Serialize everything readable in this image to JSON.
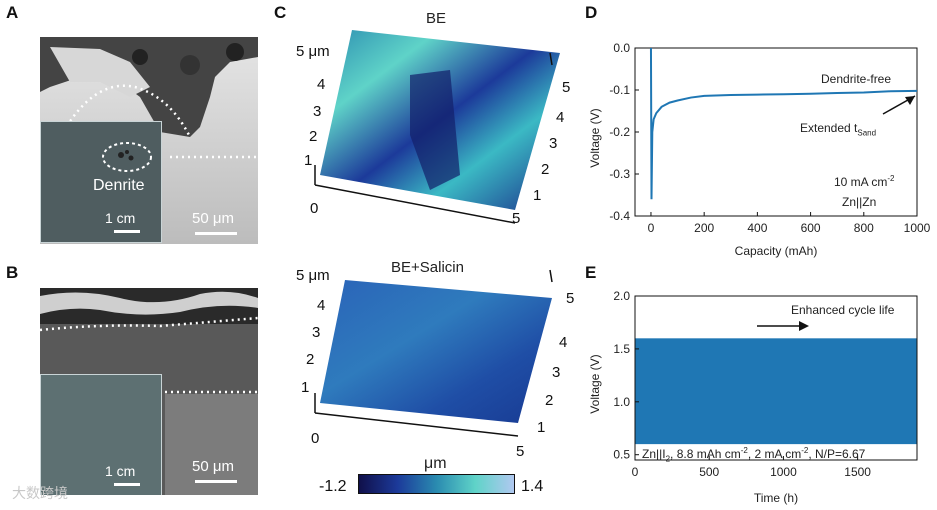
{
  "panels": {
    "A": {
      "label": "A",
      "inset_label": "Denrite",
      "inset_scale": "1 cm",
      "sem_scale": "50 μm"
    },
    "B": {
      "label": "B",
      "inset_scale": "1 cm",
      "sem_scale": "50 μm"
    },
    "C": {
      "label": "C",
      "top_title": "BE",
      "bottom_title": "BE+Salicin",
      "z_unit": "5 μm",
      "z_ticks": [
        "1",
        "2",
        "3",
        "4"
      ],
      "x_ticks": [
        "0",
        "5"
      ],
      "side_ticks": [
        "1",
        "2",
        "3",
        "4",
        "5"
      ],
      "colorbar": {
        "unit": "μm",
        "min": "-1.2",
        "max": "1.4",
        "colors": [
          "#10104a",
          "#1c3a9a",
          "#2a8bb0",
          "#5fd3c8",
          "#b0c8f0"
        ]
      }
    },
    "D": {
      "label": "D",
      "ylabel": "Voltage (V)",
      "xlabel": "Capacity (mAh)",
      "annot_free": "Dendrite-free",
      "annot_ext": "Extended t",
      "annot_ext_sub": "Sand",
      "annot_current": "10 mA cm",
      "annot_current_sup": "-2",
      "annot_cell": "Zn||Zn"
    },
    "E": {
      "label": "E",
      "ylabel": "Voltage (V)",
      "xlabel": "Time (h)",
      "annot_life": "Enhanced cycle life",
      "caption_a": "Zn||I",
      "caption_sub": "2",
      "caption_b": ", 8.8 mAh cm",
      "caption_sup1": "-2",
      "caption_c": ", 2 mA cm",
      "caption_sup2": "-2",
      "caption_d": ", N/P=6.67"
    }
  },
  "watermark": "大数跨境",
  "chart_data": [
    {
      "type": "line",
      "name": "D",
      "xlabel": "Capacity (mAh)",
      "ylabel": "Voltage (V)",
      "xlim": [
        -60,
        1000
      ],
      "ylim": [
        -0.4,
        0.0
      ],
      "xticks": [
        0,
        200,
        400,
        600,
        800,
        1000
      ],
      "yticks": [
        0.0,
        -0.1,
        -0.2,
        -0.3,
        -0.4
      ],
      "color": "#1f77b4",
      "x": [
        0,
        2,
        5,
        10,
        20,
        40,
        70,
        100,
        150,
        200,
        300,
        400,
        500,
        600,
        700,
        800,
        900,
        1000
      ],
      "y": [
        0.0,
        -0.36,
        -0.2,
        -0.17,
        -0.155,
        -0.14,
        -0.13,
        -0.125,
        -0.118,
        -0.114,
        -0.112,
        -0.111,
        -0.11,
        -0.109,
        -0.107,
        -0.106,
        -0.103,
        -0.102
      ]
    },
    {
      "type": "area",
      "name": "E",
      "xlabel": "Time (h)",
      "ylabel": "Voltage (V)",
      "xlim": [
        0,
        1900
      ],
      "ylim": [
        0.45,
        2.0
      ],
      "xticks": [
        0,
        500,
        1000,
        1500
      ],
      "yticks": [
        0.5,
        1.0,
        1.5,
        2.0
      ],
      "color": "#1f77b4",
      "x": [
        0,
        1900
      ],
      "y_low": [
        0.6,
        0.6
      ],
      "y_high": [
        1.6,
        1.6
      ]
    }
  ]
}
